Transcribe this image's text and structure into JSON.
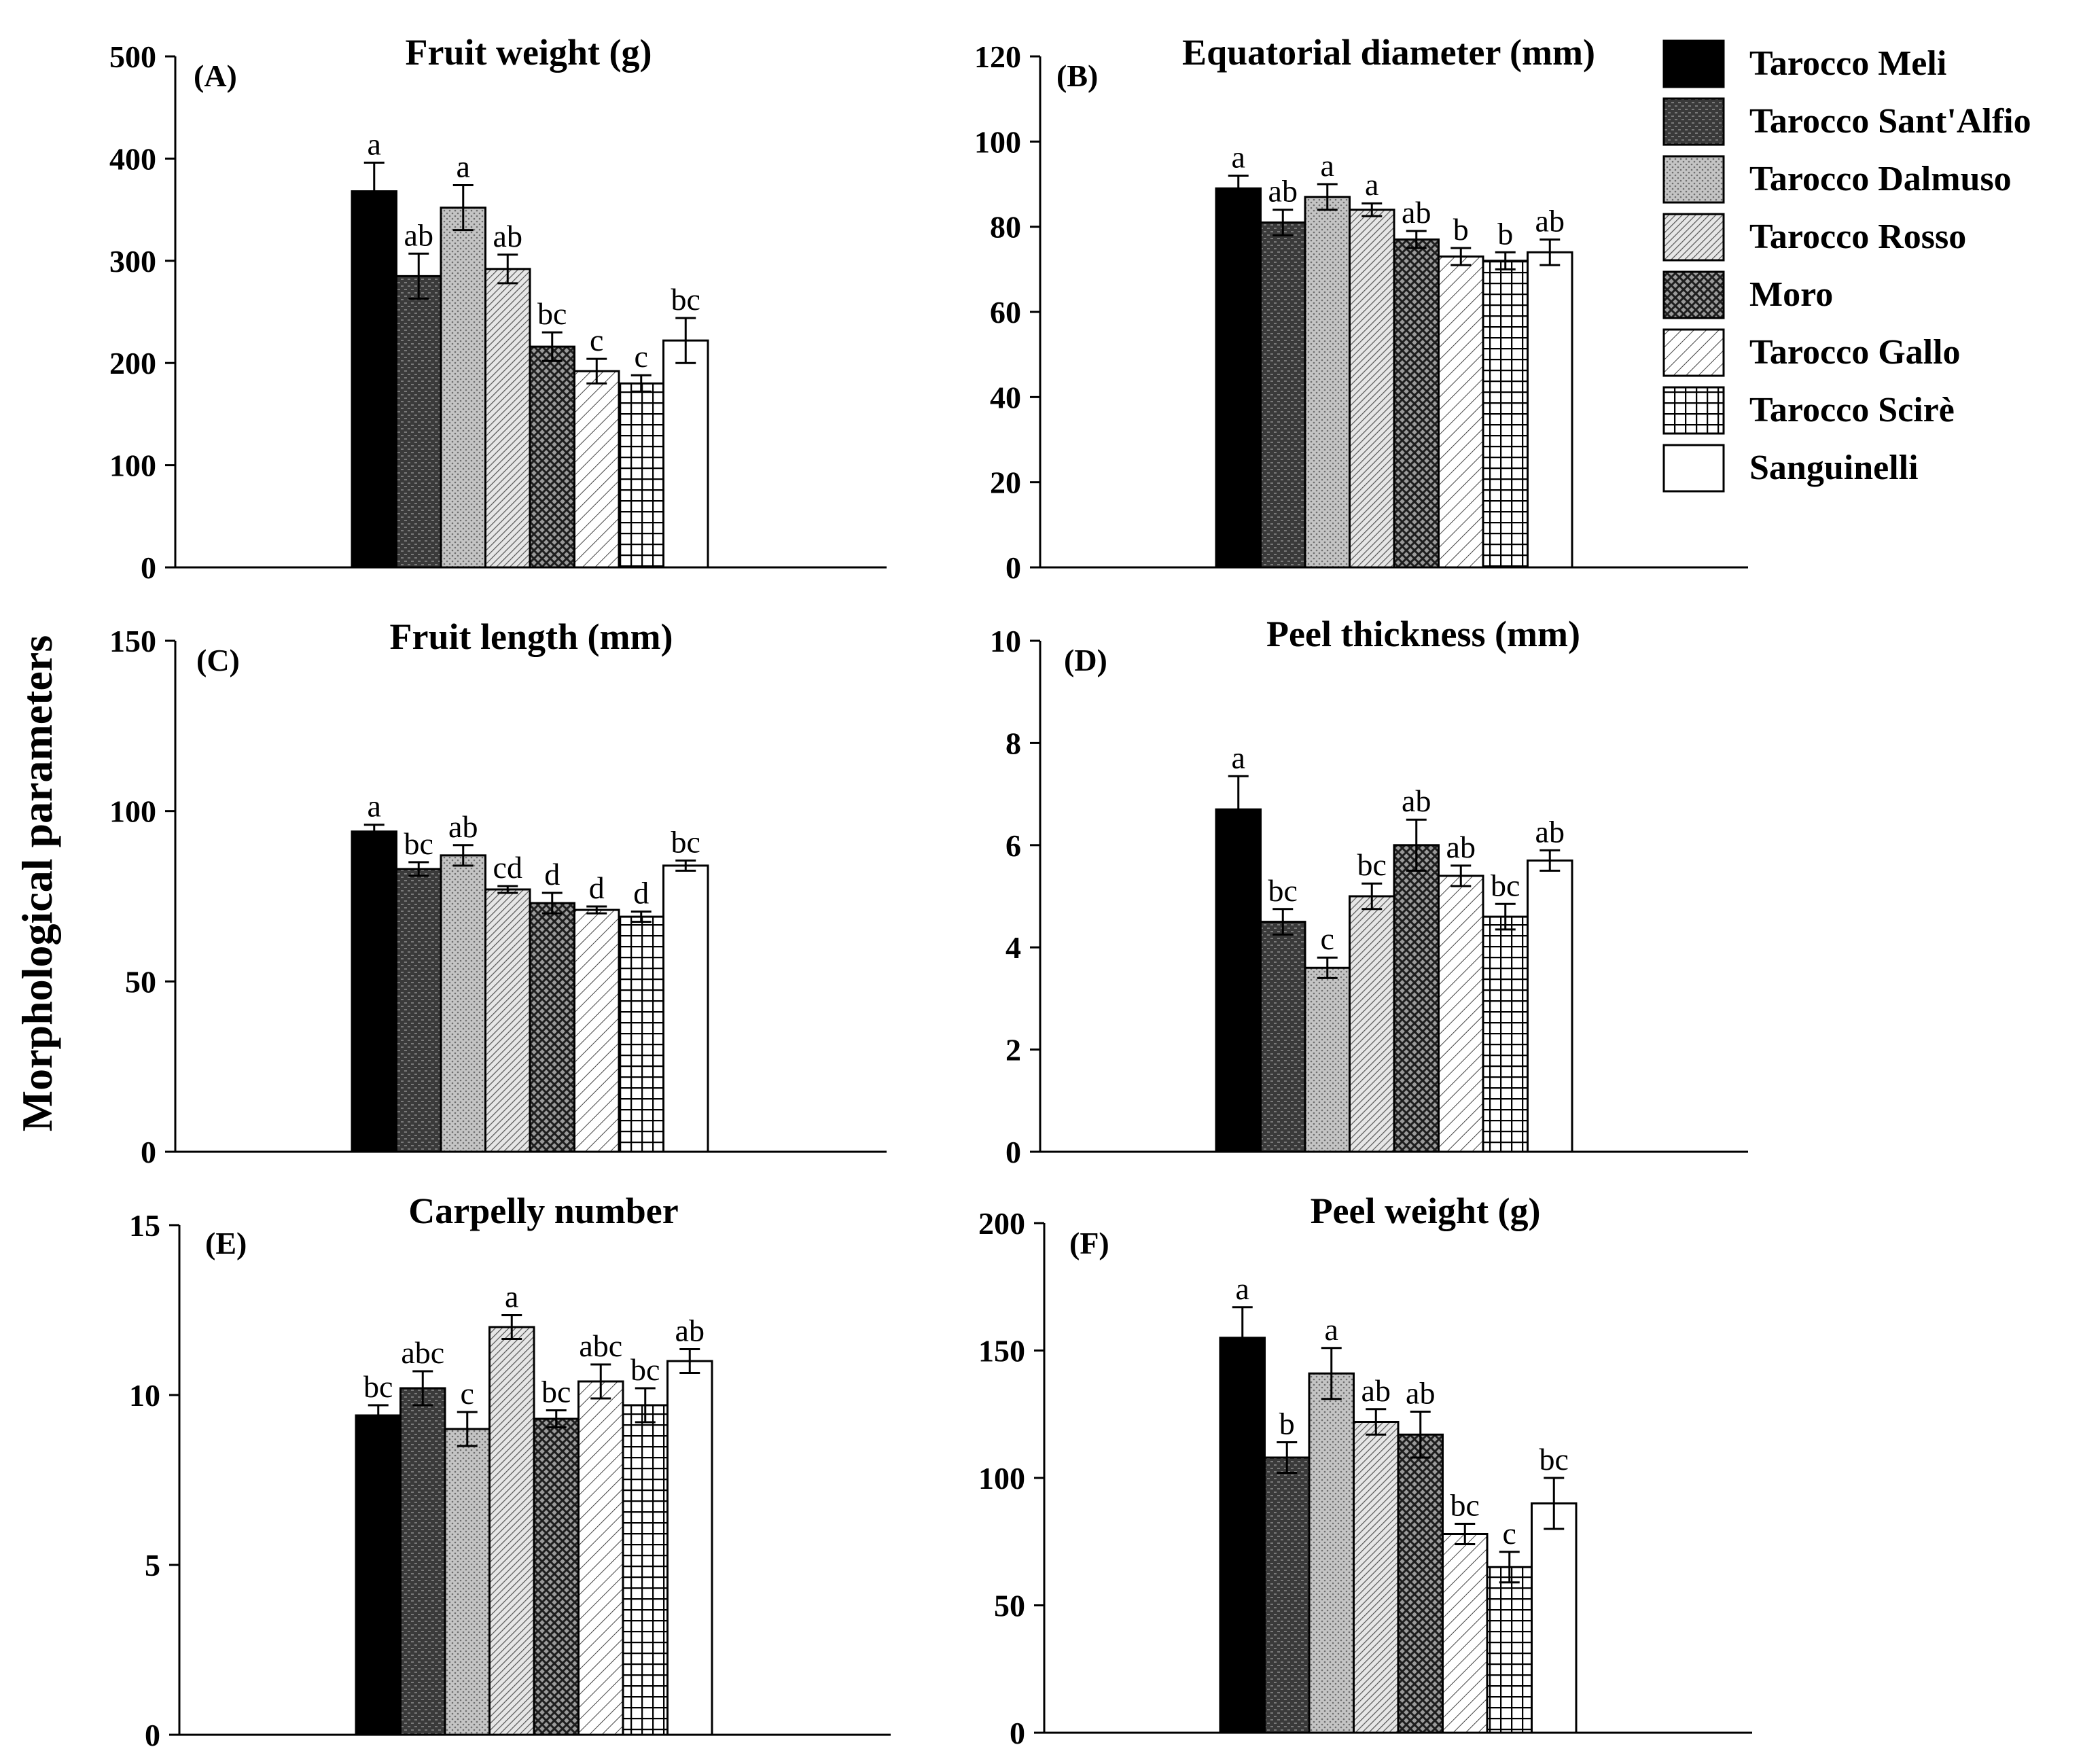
{
  "figure": {
    "ylabel": "Morphological parameters"
  },
  "colors": {
    "ink": "#000000",
    "background": "#ffffff"
  },
  "legend": [
    {
      "name": "Tarocco Meli",
      "pattern": "solid-black"
    },
    {
      "name": "Tarocco Sant'Alfio",
      "pattern": "dark-brick"
    },
    {
      "name": "Tarocco Dalmuso",
      "pattern": "light-dots"
    },
    {
      "name": "Tarocco Rosso",
      "pattern": "fine-diagonal"
    },
    {
      "name": "Moro",
      "pattern": "cross-hatch"
    },
    {
      "name": "Tarocco Gallo",
      "pattern": "sparse-diagonal"
    },
    {
      "name": "Tarocco Scirè",
      "pattern": "grid"
    },
    {
      "name": "Sanguinelli",
      "pattern": "white"
    }
  ],
  "chart_data": [
    {
      "type": "bar",
      "panel": "(A)",
      "title": "Fruit weight (g)",
      "categories": [
        "Tarocco Meli",
        "Tarocco Sant'Alfio",
        "Tarocco Dalmuso",
        "Tarocco Rosso",
        "Moro",
        "Tarocco Gallo",
        "Tarocco Scirè",
        "Sanguinelli"
      ],
      "values": [
        368,
        285,
        352,
        292,
        216,
        192,
        180,
        222
      ],
      "errors": [
        28,
        22,
        22,
        14,
        14,
        12,
        8,
        22
      ],
      "letters": [
        "a",
        "ab",
        "a",
        "ab",
        "bc",
        "c",
        "c",
        "bc"
      ],
      "ylim": [
        0,
        500
      ],
      "yticks": [
        0,
        100,
        200,
        300,
        400,
        500
      ]
    },
    {
      "type": "bar",
      "panel": "(B)",
      "title": "Equatorial diameter (mm)",
      "categories": [
        "Tarocco Meli",
        "Tarocco Sant'Alfio",
        "Tarocco Dalmuso",
        "Tarocco Rosso",
        "Moro",
        "Tarocco Gallo",
        "Tarocco Scirè",
        "Sanguinelli"
      ],
      "values": [
        89,
        81,
        87,
        84,
        77,
        73,
        72,
        74
      ],
      "errors": [
        3,
        3,
        3,
        1.5,
        2,
        2,
        2,
        3
      ],
      "letters": [
        "a",
        "ab",
        "a",
        "a",
        "ab",
        "b",
        "b",
        "ab"
      ],
      "ylim": [
        0,
        120
      ],
      "yticks": [
        0,
        20,
        40,
        60,
        80,
        100,
        120
      ]
    },
    {
      "type": "bar",
      "panel": "(C)",
      "title": "Fruit length (mm)",
      "categories": [
        "Tarocco Meli",
        "Tarocco Sant'Alfio",
        "Tarocco Dalmuso",
        "Tarocco Rosso",
        "Moro",
        "Tarocco Gallo",
        "Tarocco Scirè",
        "Sanguinelli"
      ],
      "values": [
        94,
        83,
        87,
        77,
        73,
        71,
        69,
        84
      ],
      "errors": [
        2,
        2,
        3,
        1,
        3,
        1,
        1.5,
        1.5
      ],
      "letters": [
        "a",
        "bc",
        "ab",
        "cd",
        "d",
        "d",
        "d",
        "bc"
      ],
      "ylim": [
        0,
        150
      ],
      "yticks": [
        0,
        50,
        100,
        150
      ]
    },
    {
      "type": "bar",
      "panel": "(D)",
      "title": "Peel thickness (mm)",
      "categories": [
        "Tarocco Meli",
        "Tarocco Sant'Alfio",
        "Tarocco Dalmuso",
        "Tarocco Rosso",
        "Moro",
        "Tarocco Gallo",
        "Tarocco Scirè",
        "Sanguinelli"
      ],
      "values": [
        6.7,
        4.5,
        3.6,
        5.0,
        6.0,
        5.4,
        4.6,
        5.7
      ],
      "errors": [
        0.65,
        0.25,
        0.2,
        0.25,
        0.5,
        0.2,
        0.25,
        0.2
      ],
      "letters": [
        "a",
        "bc",
        "c",
        "bc",
        "ab",
        "ab",
        "bc",
        "ab"
      ],
      "ylim": [
        0,
        10
      ],
      "yticks": [
        0,
        2,
        4,
        6,
        8,
        10
      ]
    },
    {
      "type": "bar",
      "panel": "(E)",
      "title": "Carpelly number",
      "categories": [
        "Tarocco Meli",
        "Tarocco Sant'Alfio",
        "Tarocco Dalmuso",
        "Tarocco Rosso",
        "Moro",
        "Tarocco Gallo",
        "Tarocco Scirè",
        "Sanguinelli"
      ],
      "values": [
        9.4,
        10.2,
        9.0,
        12.0,
        9.3,
        10.4,
        9.7,
        11.0
      ],
      "errors": [
        0.3,
        0.5,
        0.5,
        0.35,
        0.25,
        0.5,
        0.5,
        0.35
      ],
      "letters": [
        "bc",
        "abc",
        "c",
        "a",
        "bc",
        "abc",
        "bc",
        "ab"
      ],
      "ylim": [
        0,
        15
      ],
      "yticks": [
        0,
        5,
        10,
        15
      ]
    },
    {
      "type": "bar",
      "panel": "(F)",
      "title": "Peel weight (g)",
      "categories": [
        "Tarocco Meli",
        "Tarocco Sant'Alfio",
        "Tarocco Dalmuso",
        "Tarocco Rosso",
        "Moro",
        "Tarocco Gallo",
        "Tarocco Scirè",
        "Sanguinelli"
      ],
      "values": [
        155,
        108,
        141,
        122,
        117,
        78,
        65,
        90
      ],
      "errors": [
        12,
        6,
        10,
        5,
        9,
        4,
        6,
        10
      ],
      "letters": [
        "a",
        "b",
        "a",
        "ab",
        "ab",
        "bc",
        "c",
        "bc"
      ],
      "ylim": [
        0,
        200
      ],
      "yticks": [
        0,
        50,
        100,
        150,
        200
      ]
    }
  ]
}
